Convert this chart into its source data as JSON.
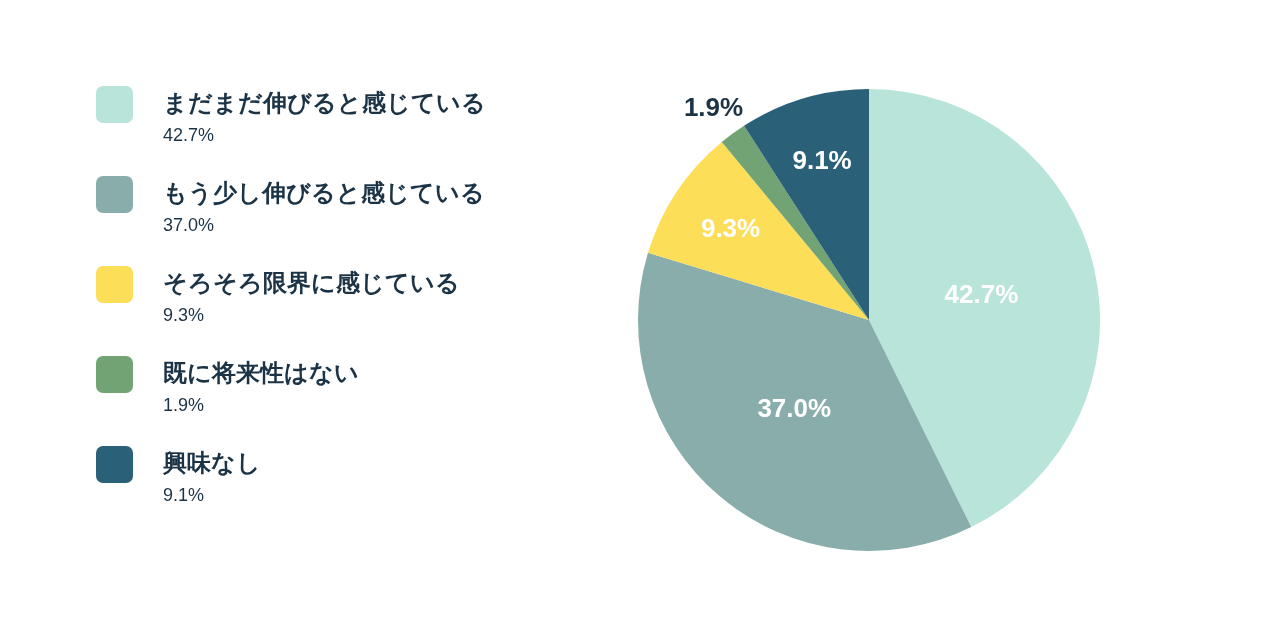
{
  "chart_data": {
    "type": "pie",
    "categories": [
      "まだまだ伸びると感じている",
      "もう少し伸びると感じている",
      "そろそろ限界に感じている",
      "既に将来性はない",
      "興味なし"
    ],
    "values": [
      42.7,
      37.0,
      9.3,
      1.9,
      9.1
    ],
    "value_labels": [
      "42.7%",
      "37.0%",
      "9.3%",
      "1.9%",
      "9.1%"
    ],
    "colors": [
      "#b8e4da",
      "#88adab",
      "#fdde59",
      "#72a374",
      "#2a6078"
    ],
    "legend": "left"
  }
}
